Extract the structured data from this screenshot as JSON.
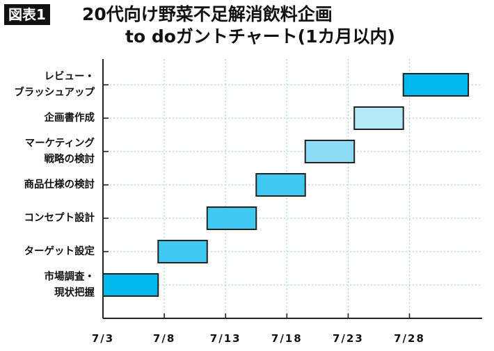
{
  "figure_label": "図表1",
  "title_line1": "20代向け野菜不足解消飲料企画",
  "title_line2": "to doガントチャート(1カ月以内)",
  "colors": {
    "bar_dark": "#00b8ec",
    "bar_mid": "#3fc8f2",
    "bar_light": "#8fdcf6",
    "bar_pale": "#b5e8f9",
    "bar_stroke": "#222222",
    "grid": "#a9d4dc",
    "axis": "#222222"
  },
  "chart_data": {
    "type": "gantt",
    "title": "20代向け野菜不足解消飲料企画 to doガントチャート(1カ月以内)",
    "x_unit": "date",
    "x_ticks": [
      "7/3",
      "7/8",
      "7/13",
      "7/18",
      "7/23",
      "7/28"
    ],
    "x_tick_days": [
      3,
      8,
      13,
      18,
      23,
      28
    ],
    "x_range": [
      3,
      33
    ],
    "grid": true,
    "tasks": [
      {
        "label": [
          "レビュー・",
          "ブラッシュアップ"
        ],
        "start": 27.5,
        "end": 32.8,
        "color": "bar_dark"
      },
      {
        "label": [
          "企画書作成"
        ],
        "start": 23.5,
        "end": 27.5,
        "color": "bar_pale"
      },
      {
        "label": [
          "マーケティング",
          "戦略の検討"
        ],
        "start": 19.5,
        "end": 23.5,
        "color": "bar_light"
      },
      {
        "label": [
          "商品仕様の検討"
        ],
        "start": 15.5,
        "end": 19.5,
        "color": "bar_mid"
      },
      {
        "label": [
          "コンセプト設計"
        ],
        "start": 11.5,
        "end": 15.5,
        "color": "bar_mid"
      },
      {
        "label": [
          "ターゲット設定"
        ],
        "start": 7.5,
        "end": 11.5,
        "color": "bar_mid"
      },
      {
        "label": [
          "市場調査・",
          "現状把握"
        ],
        "start": 3.0,
        "end": 7.5,
        "color": "bar_dark"
      }
    ]
  }
}
